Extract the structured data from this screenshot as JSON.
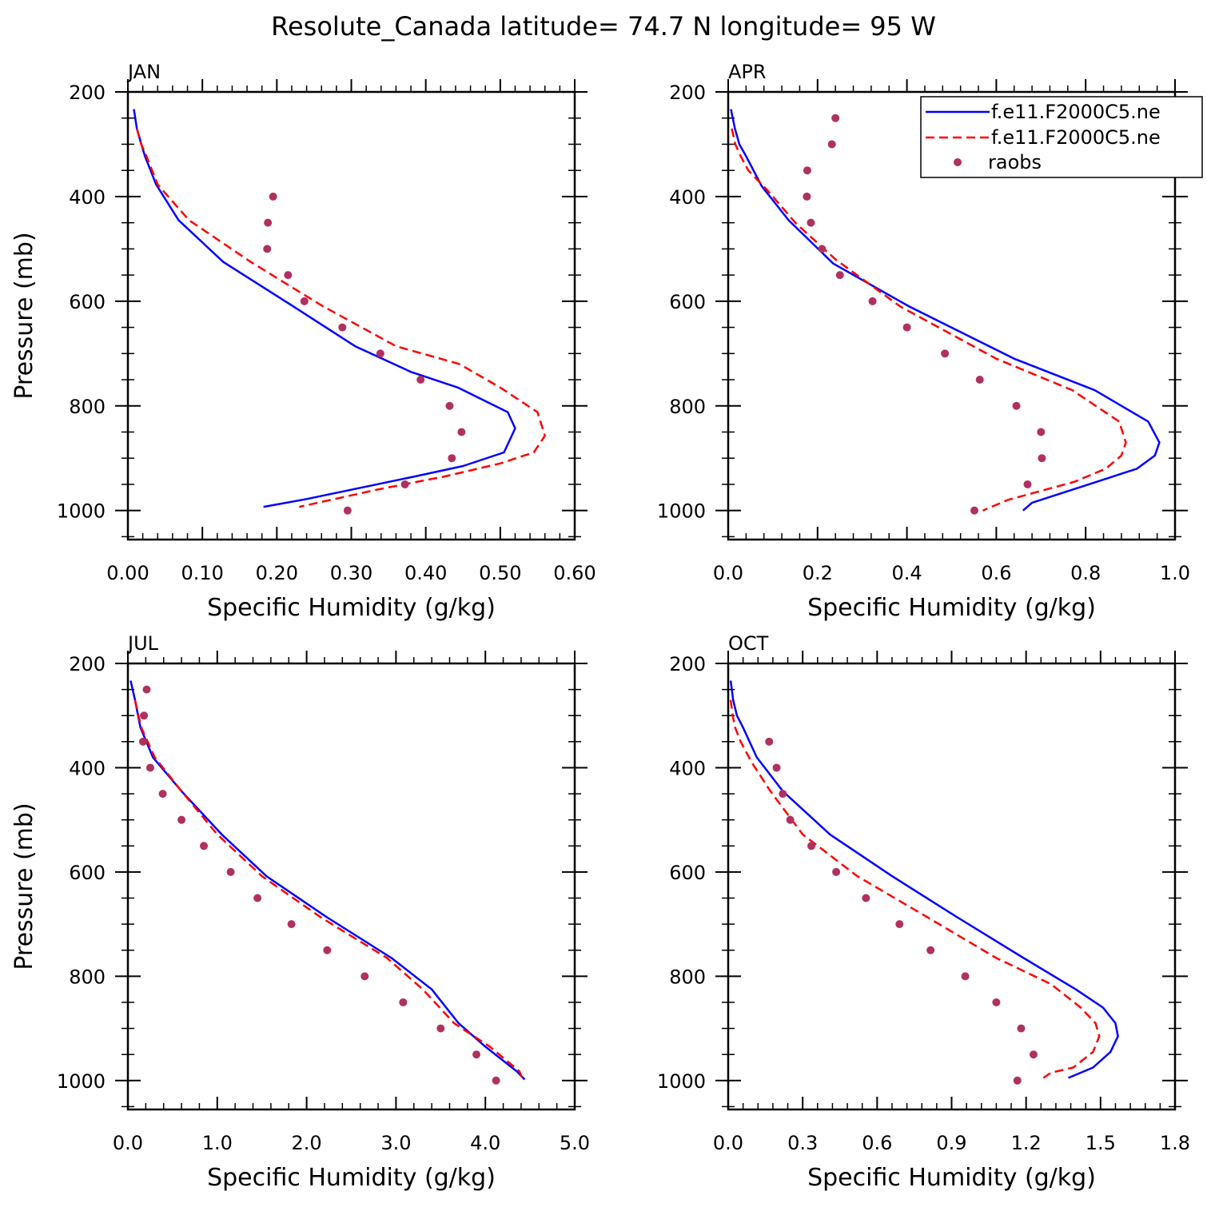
{
  "page_title": "Resolute_Canada  latitude= 74.7 N longitude= 95 W",
  "colors": {
    "model_a": "#0000ff",
    "model_b": "#ff0000",
    "raobs": "#b03060"
  },
  "legend": {
    "entries": [
      "f.e11.F2000C5.ne",
      "f.e11.F2000C5.ne",
      "raobs"
    ],
    "placement": "top-right of APR panel"
  },
  "chart_data": [
    {
      "type": "line",
      "panel": "JAN",
      "xlabel": "Specific Humidity (g/kg)",
      "ylabel": "Pressure (mb)",
      "xlim": [
        0,
        0.6
      ],
      "ylim": [
        1000,
        200
      ],
      "x_ticks": [
        "0.00",
        "0.10",
        "0.20",
        "0.30",
        "0.40",
        "0.50",
        "0.60"
      ],
      "y_ticks": [
        "200",
        "400",
        "600",
        "800",
        "1000"
      ],
      "series": [
        {
          "name": "f.e11.F2000C5.ne",
          "style": "solid",
          "x": [
            0.008,
            0.012,
            0.018,
            0.023,
            0.038,
            0.068,
            0.128,
            0.22,
            0.305,
            0.38,
            0.443,
            0.51,
            0.52,
            0.505,
            0.45,
            0.385,
            0.24,
            0.182
          ],
          "y": [
            233,
            270,
            300,
            323,
            377,
            445,
            525,
            608,
            686,
            735,
            765,
            812,
            843,
            889,
            915,
            935,
            978,
            993
          ]
        },
        {
          "name": "f.e11.F2000C5.ne",
          "style": "dashed",
          "x": [
            0.012,
            0.018,
            0.025,
            0.04,
            0.082,
            0.165,
            0.26,
            0.36,
            0.445,
            0.5,
            0.55,
            0.56,
            0.545,
            0.5,
            0.425,
            0.335,
            0.23
          ],
          "y": [
            270,
            300,
            323,
            377,
            445,
            525,
            608,
            686,
            720,
            765,
            812,
            857,
            889,
            910,
            935,
            960,
            993
          ]
        },
        {
          "name": "raobs",
          "style": "points",
          "x": [
            0.195,
            0.188,
            0.187,
            0.215,
            0.237,
            0.288,
            0.339,
            0.393,
            0.432,
            0.448,
            0.435,
            0.372,
            0.295
          ],
          "y": [
            400,
            450,
            500,
            550,
            600,
            650,
            700,
            750,
            800,
            850,
            900,
            950,
            1000
          ]
        }
      ]
    },
    {
      "type": "line",
      "panel": "APR",
      "xlabel": "Specific Humidity (g/kg)",
      "ylabel": "",
      "xlim": [
        0,
        1.0
      ],
      "ylim": [
        1000,
        200
      ],
      "x_ticks": [
        "0.0",
        "0.2",
        "0.4",
        "0.6",
        "0.8",
        "1.0"
      ],
      "y_ticks": [
        "200",
        "400",
        "600",
        "800",
        "1000"
      ],
      "series": [
        {
          "name": "f.e11.F2000C5.ne",
          "style": "solid",
          "x": [
            0.006,
            0.015,
            0.025,
            0.04,
            0.075,
            0.135,
            0.235,
            0.405,
            0.64,
            0.82,
            0.94,
            0.965,
            0.955,
            0.915,
            0.825,
            0.68,
            0.66
          ],
          "y": [
            233,
            270,
            300,
            323,
            380,
            445,
            528,
            610,
            710,
            770,
            830,
            870,
            895,
            920,
            945,
            985,
            1000
          ]
        },
        {
          "name": "f.e11.F2000C5.ne",
          "style": "dashed",
          "x": [
            0.008,
            0.016,
            0.028,
            0.045,
            0.09,
            0.15,
            0.24,
            0.385,
            0.6,
            0.77,
            0.875,
            0.89,
            0.88,
            0.845,
            0.775,
            0.625,
            0.57
          ],
          "y": [
            270,
            300,
            323,
            350,
            390,
            450,
            520,
            610,
            710,
            770,
            830,
            870,
            895,
            920,
            945,
            980,
            1000
          ]
        },
        {
          "name": "raobs",
          "style": "points",
          "x": [
            0.24,
            0.232,
            0.177,
            0.176,
            0.185,
            0.21,
            0.25,
            0.323,
            0.4,
            0.485,
            0.563,
            0.645,
            0.7,
            0.702,
            0.67,
            0.551
          ],
          "y": [
            250,
            300,
            350,
            400,
            450,
            500,
            550,
            600,
            650,
            700,
            750,
            800,
            850,
            900,
            950,
            1000
          ]
        }
      ]
    },
    {
      "type": "line",
      "panel": "JUL",
      "xlabel": "Specific Humidity (g/kg)",
      "ylabel": "Pressure (mb)",
      "xlim": [
        0,
        5.0
      ],
      "ylim": [
        1000,
        200
      ],
      "x_ticks": [
        "0.0",
        "1.0",
        "2.0",
        "3.0",
        "4.0",
        "5.0"
      ],
      "y_ticks": [
        "200",
        "400",
        "600",
        "800",
        "1000"
      ],
      "series": [
        {
          "name": "f.e11.F2000C5.ne",
          "style": "solid",
          "x": [
            0.03,
            0.08,
            0.14,
            0.28,
            0.6,
            1.05,
            1.55,
            2.22,
            2.95,
            3.4,
            3.7,
            4.0,
            4.35,
            4.44
          ],
          "y": [
            233,
            270,
            323,
            380,
            445,
            528,
            608,
            686,
            765,
            825,
            890,
            935,
            982,
            998
          ]
        },
        {
          "name": "f.e11.F2000C5.ne",
          "style": "dashed",
          "x": [
            0.08,
            0.15,
            0.3,
            0.6,
            1.0,
            1.5,
            2.15,
            2.9,
            3.3,
            3.65,
            4.05,
            4.38,
            4.42
          ],
          "y": [
            270,
            323,
            380,
            445,
            528,
            608,
            686,
            765,
            825,
            890,
            935,
            982,
            998
          ]
        },
        {
          "name": "raobs",
          "style": "points",
          "x": [
            0.21,
            0.18,
            0.17,
            0.25,
            0.39,
            0.6,
            0.85,
            1.15,
            1.45,
            1.83,
            2.23,
            2.65,
            3.08,
            3.5,
            3.9,
            4.12
          ],
          "y": [
            250,
            300,
            350,
            400,
            450,
            500,
            550,
            600,
            650,
            700,
            750,
            800,
            850,
            900,
            950,
            1000
          ]
        }
      ]
    },
    {
      "type": "line",
      "panel": "OCT",
      "xlabel": "Specific Humidity (g/kg)",
      "ylabel": "",
      "xlim": [
        0,
        1.8
      ],
      "ylim": [
        1000,
        200
      ],
      "x_ticks": [
        "0.0",
        "0.3",
        "0.6",
        "0.9",
        "1.2",
        "1.5",
        "1.8"
      ],
      "y_ticks": [
        "200",
        "400",
        "600",
        "800",
        "1000"
      ],
      "series": [
        {
          "name": "f.e11.F2000C5.ne",
          "style": "solid",
          "x": [
            0.01,
            0.02,
            0.035,
            0.06,
            0.115,
            0.22,
            0.41,
            0.66,
            0.92,
            1.19,
            1.4,
            1.51,
            1.56,
            1.57,
            1.54,
            1.47,
            1.37
          ],
          "y": [
            233,
            270,
            300,
            323,
            380,
            445,
            528,
            608,
            686,
            765,
            825,
            860,
            890,
            915,
            945,
            975,
            995
          ]
        },
        {
          "name": "f.e11.F2000C5.ne",
          "style": "dashed",
          "x": [
            0.01,
            0.018,
            0.028,
            0.05,
            0.095,
            0.17,
            0.3,
            0.52,
            0.8,
            1.08,
            1.3,
            1.42,
            1.48,
            1.495,
            1.47,
            1.39,
            1.3,
            1.27
          ],
          "y": [
            270,
            300,
            323,
            350,
            390,
            445,
            528,
            608,
            686,
            765,
            815,
            860,
            890,
            915,
            945,
            975,
            985,
            995
          ]
        },
        {
          "name": "raobs",
          "style": "points",
          "x": [
            0.165,
            0.195,
            0.22,
            0.25,
            0.335,
            0.435,
            0.555,
            0.69,
            0.815,
            0.955,
            1.08,
            1.18,
            1.23,
            1.165
          ],
          "y": [
            350,
            400,
            450,
            500,
            550,
            600,
            650,
            700,
            750,
            800,
            850,
            900,
            950,
            1000
          ]
        }
      ]
    }
  ]
}
